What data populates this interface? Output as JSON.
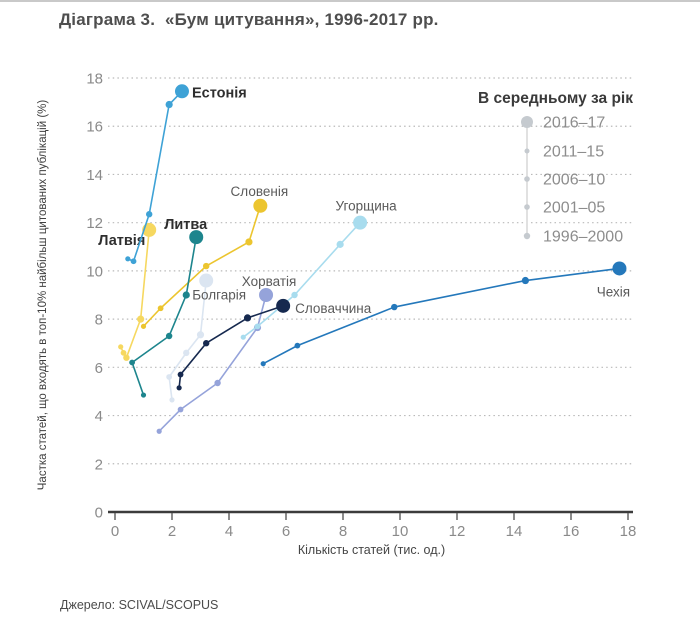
{
  "page": {
    "title": "Діаграма 3.  «Бум цитування», 1996-2017 рр.",
    "source": "Джерело: SCIVAL/SCOPUS"
  },
  "chart_data": {
    "type": "scatter-line",
    "title": "Діаграма 3. «Бум цитування», 1996-2017 рр.",
    "xlabel": "Кількість статей (тис. од.)",
    "ylabel": "Частка статей, що входять в топ-10% найбільш цитованих публікацій (%)",
    "xlim": [
      0,
      18
    ],
    "ylim": [
      0,
      18
    ],
    "xticks": [
      0,
      2,
      4,
      6,
      8,
      10,
      12,
      14,
      16,
      18
    ],
    "yticks": [
      0,
      2,
      4,
      6,
      8,
      10,
      12,
      14,
      16,
      18
    ],
    "grid": "horizontal-dotted",
    "periods": [
      "1996–2000",
      "2001–05",
      "2006–10",
      "2011–15",
      "2016–17"
    ],
    "legend": {
      "title": "В середньому за рік",
      "position": "top-right",
      "entries": [
        "2016–17",
        "2011–15",
        "2006–10",
        "2001–05",
        "1996–2000"
      ],
      "dot_color": "#c5cacf",
      "note": "dot size grows with later period"
    },
    "series": [
      {
        "name": "Болгарія",
        "bold": false,
        "color": "#dbe5f1",
        "points": [
          [
            2.0,
            4.65
          ],
          [
            1.9,
            5.6
          ],
          [
            2.5,
            6.6
          ],
          [
            3.0,
            7.35
          ],
          [
            3.2,
            9.6
          ]
        ]
      },
      {
        "name": "Хорватія",
        "bold": false,
        "color": "#95a3da",
        "points": [
          [
            1.55,
            3.35
          ],
          [
            2.3,
            4.25
          ],
          [
            3.6,
            5.35
          ],
          [
            5.0,
            7.65
          ],
          [
            5.3,
            9.0
          ]
        ]
      },
      {
        "name": "Угорщина",
        "bold": false,
        "color": "#a8dcee",
        "points": [
          [
            4.5,
            7.25
          ],
          [
            5.0,
            7.7
          ],
          [
            6.3,
            9.0
          ],
          [
            7.9,
            11.1
          ],
          [
            8.6,
            12.0
          ]
        ]
      },
      {
        "name": "Чехія",
        "bold": false,
        "color": "#2478bb",
        "points": [
          [
            5.2,
            6.15
          ],
          [
            6.4,
            6.9
          ],
          [
            9.8,
            8.5
          ],
          [
            14.4,
            9.6
          ],
          [
            17.7,
            10.1
          ]
        ]
      },
      {
        "name": "Словаччина",
        "bold": false,
        "color": "#16294f",
        "points": [
          [
            2.25,
            5.15
          ],
          [
            2.3,
            5.7
          ],
          [
            3.2,
            7.0
          ],
          [
            4.65,
            8.05
          ],
          [
            5.9,
            8.55
          ]
        ]
      },
      {
        "name": "Словенія",
        "bold": false,
        "color": "#ecc52f",
        "points": [
          [
            1.0,
            7.7
          ],
          [
            1.6,
            8.45
          ],
          [
            3.2,
            10.2
          ],
          [
            4.7,
            11.2
          ],
          [
            5.1,
            12.7
          ]
        ]
      },
      {
        "name": "Латвія",
        "bold": true,
        "color": "#f6d860",
        "points": [
          [
            0.2,
            6.85
          ],
          [
            0.3,
            6.6
          ],
          [
            0.4,
            6.4
          ],
          [
            0.9,
            8.0
          ],
          [
            1.2,
            11.7
          ]
        ]
      },
      {
        "name": "Литва",
        "bold": true,
        "color": "#1d858d",
        "points": [
          [
            1.0,
            4.85
          ],
          [
            0.6,
            6.2
          ],
          [
            1.9,
            7.3
          ],
          [
            2.5,
            9.0
          ],
          [
            2.85,
            11.4
          ]
        ]
      },
      {
        "name": "Естонія",
        "bold": true,
        "color": "#3ea2d6",
        "points": [
          [
            0.45,
            10.5
          ],
          [
            0.65,
            10.4
          ],
          [
            1.2,
            12.35
          ],
          [
            1.9,
            16.9
          ],
          [
            2.35,
            17.45
          ]
        ]
      }
    ]
  }
}
